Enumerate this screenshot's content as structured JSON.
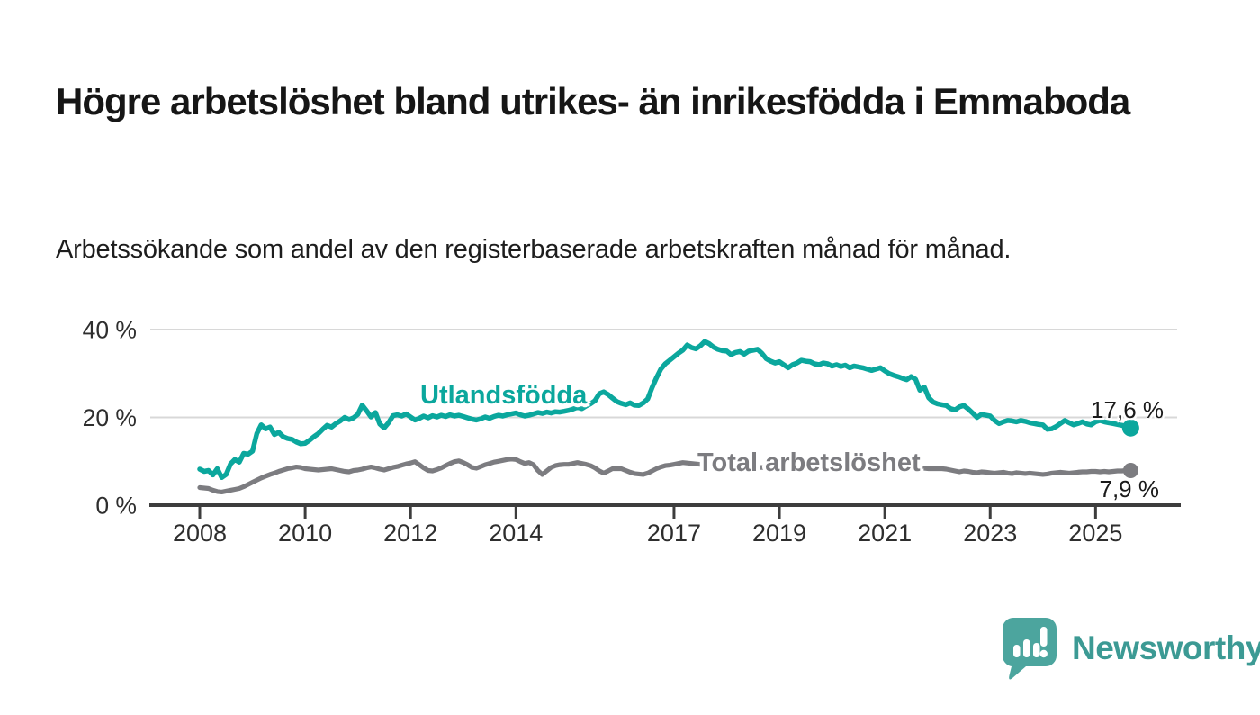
{
  "title": "Högre arbetslöshet bland utrikes- än inrikesfödda i Emmaboda",
  "subtitle": "Arbetssökande som andel av den registerbaserade arbetskraften månad för månad.",
  "branding": {
    "wordmark": "Newsworthy",
    "icon": "speech-bubble-bar-chart-icon",
    "icon_color": "#4CA59E",
    "wordmark_color": "#3C9A94"
  },
  "colors": {
    "axis": "#3d3d3d",
    "gridline": "#d8d8d8",
    "tick_text": "#2e2e2e",
    "value_text": "#1a1a1a"
  },
  "chart_data": {
    "type": "line",
    "x_unit": "months",
    "x_start_year": 2008,
    "points_per_year": 12,
    "x_ticks": [
      {
        "year": 2008,
        "label": "2008"
      },
      {
        "year": 2010,
        "label": "2010"
      },
      {
        "year": 2012,
        "label": "2012"
      },
      {
        "year": 2014,
        "label": "2014"
      },
      {
        "year": 2017,
        "label": "2017"
      },
      {
        "year": 2019,
        "label": "2019"
      },
      {
        "year": 2021,
        "label": "2021"
      },
      {
        "year": 2023,
        "label": "2023"
      },
      {
        "year": 2025,
        "label": "2025"
      }
    ],
    "y_ticks": [
      {
        "value": 0,
        "label": "0 %"
      },
      {
        "value": 20,
        "label": "20 %"
      },
      {
        "value": 40,
        "label": "40 %"
      }
    ],
    "ylim": [
      0,
      42
    ],
    "grid": "horizontal",
    "legend": "inline-labels",
    "series": [
      {
        "name": "Utlandsfödda",
        "slug": "utlandsfodda",
        "color": "#0BA79D",
        "end_label": "17,6 %",
        "end_value": 17.6,
        "values": [
          8.2,
          7.7,
          7.9,
          6.9,
          8.3,
          6.3,
          7.0,
          9.4,
          10.4,
          9.8,
          11.8,
          11.6,
          12.3,
          16.3,
          18.3,
          17.4,
          17.8,
          16.1,
          16.6,
          15.6,
          15.2,
          15.0,
          14.4,
          14.0,
          14.1,
          14.8,
          15.6,
          16.3,
          17.3,
          18.2,
          17.8,
          18.6,
          19.2,
          20.0,
          19.5,
          19.9,
          20.7,
          22.8,
          21.5,
          20.1,
          21.1,
          18.5,
          17.6,
          18.8,
          20.4,
          20.6,
          20.3,
          20.8,
          20.1,
          19.4,
          19.8,
          20.3,
          19.9,
          20.4,
          20.1,
          20.5,
          20.2,
          20.6,
          20.3,
          20.5,
          20.2,
          19.9,
          19.6,
          19.4,
          19.7,
          20.1,
          19.8,
          20.2,
          20.5,
          20.3,
          20.6,
          20.8,
          21.0,
          20.6,
          20.3,
          20.5,
          20.8,
          21.1,
          20.9,
          21.2,
          21.0,
          21.3,
          21.2,
          21.4,
          21.6,
          21.9,
          22.3,
          22.0,
          22.6,
          23.1,
          23.8,
          25.4,
          25.8,
          25.2,
          24.4,
          23.6,
          23.2,
          22.9,
          23.3,
          22.8,
          22.7,
          23.3,
          24.2,
          26.8,
          29.0,
          31.0,
          32.2,
          33.0,
          33.8,
          34.6,
          35.3,
          36.5,
          35.9,
          35.6,
          36.3,
          37.3,
          36.8,
          36.0,
          35.5,
          35.2,
          35.1,
          34.3,
          34.8,
          35.0,
          34.4,
          35.1,
          35.3,
          35.5,
          34.6,
          33.4,
          32.8,
          32.4,
          32.7,
          32.0,
          31.3,
          32.0,
          32.4,
          33.0,
          32.8,
          32.7,
          32.2,
          32.0,
          32.4,
          32.2,
          31.7,
          32.0,
          31.6,
          31.9,
          31.3,
          31.7,
          31.5,
          31.3,
          31.0,
          30.7,
          31.0,
          31.3,
          30.6,
          30.0,
          29.6,
          29.3,
          28.9,
          28.6,
          29.3,
          28.7,
          26.2,
          26.9,
          24.5,
          23.5,
          23.1,
          22.9,
          22.7,
          22.0,
          21.7,
          22.4,
          22.7,
          21.9,
          21.0,
          20.0,
          20.7,
          20.5,
          20.3,
          19.3,
          18.6,
          19.0,
          19.3,
          19.2,
          19.0,
          19.3,
          19.1,
          18.8,
          18.6,
          18.4,
          18.3,
          17.3,
          17.4,
          17.9,
          18.6,
          19.3,
          18.8,
          18.3,
          18.6,
          19.0,
          18.5,
          18.3,
          19.0,
          19.3,
          19.0,
          18.8,
          18.6,
          18.4,
          18.2,
          17.9,
          17.6
        ]
      },
      {
        "name": "Total arbetslöshet",
        "slug": "total-arbetsloshet",
        "color": "#7C7C80",
        "end_label": "7,9 %",
        "end_value": 7.9,
        "values": [
          4.0,
          3.9,
          3.8,
          3.4,
          3.1,
          3.0,
          3.2,
          3.4,
          3.6,
          3.8,
          4.2,
          4.7,
          5.2,
          5.7,
          6.2,
          6.6,
          7.0,
          7.3,
          7.7,
          8.0,
          8.3,
          8.5,
          8.7,
          8.6,
          8.3,
          8.2,
          8.1,
          8.0,
          8.1,
          8.2,
          8.3,
          8.1,
          7.9,
          7.7,
          7.6,
          7.9,
          8.0,
          8.2,
          8.5,
          8.7,
          8.5,
          8.2,
          8.0,
          8.3,
          8.6,
          8.8,
          9.1,
          9.4,
          9.6,
          9.9,
          9.2,
          8.5,
          7.9,
          7.8,
          8.1,
          8.5,
          9.0,
          9.5,
          9.9,
          10.1,
          9.7,
          9.2,
          8.6,
          8.4,
          8.8,
          9.2,
          9.5,
          9.8,
          10.0,
          10.2,
          10.4,
          10.5,
          10.4,
          9.9,
          9.5,
          9.7,
          9.2,
          7.9,
          7.0,
          7.8,
          8.6,
          9.0,
          9.2,
          9.3,
          9.3,
          9.5,
          9.7,
          9.5,
          9.3,
          9.0,
          8.5,
          7.8,
          7.3,
          7.8,
          8.3,
          8.3,
          8.3,
          7.9,
          7.5,
          7.2,
          7.1,
          7.0,
          7.3,
          7.8,
          8.3,
          8.7,
          9.0,
          9.1,
          9.3,
          9.5,
          9.7,
          9.6,
          9.5,
          9.4,
          9.3,
          9.2,
          9.1,
          9.0,
          9.0,
          9.0,
          9.0,
          8.9,
          8.9,
          8.8,
          8.8,
          8.7,
          8.7,
          8.6,
          8.6,
          8.5,
          8.5,
          8.5,
          8.5,
          8.5,
          8.6,
          8.6,
          8.7,
          8.7,
          8.8,
          8.8,
          8.9,
          8.9,
          9.0,
          9.0,
          9.0,
          9.1,
          9.2,
          9.3,
          9.3,
          9.2,
          9.2,
          9.1,
          9.1,
          9.0,
          9.0,
          8.9,
          8.9,
          8.8,
          8.8,
          8.7,
          8.6,
          8.6,
          8.5,
          8.5,
          8.4,
          8.4,
          8.3,
          8.3,
          8.3,
          8.3,
          8.2,
          8.0,
          7.8,
          7.6,
          7.8,
          7.7,
          7.5,
          7.4,
          7.6,
          7.5,
          7.4,
          7.3,
          7.4,
          7.5,
          7.3,
          7.2,
          7.4,
          7.3,
          7.2,
          7.3,
          7.2,
          7.1,
          7.0,
          7.1,
          7.3,
          7.4,
          7.5,
          7.4,
          7.3,
          7.4,
          7.5,
          7.6,
          7.6,
          7.7,
          7.7,
          7.6,
          7.7,
          7.6,
          7.7,
          7.8,
          7.8,
          7.9,
          7.9
        ]
      }
    ]
  }
}
